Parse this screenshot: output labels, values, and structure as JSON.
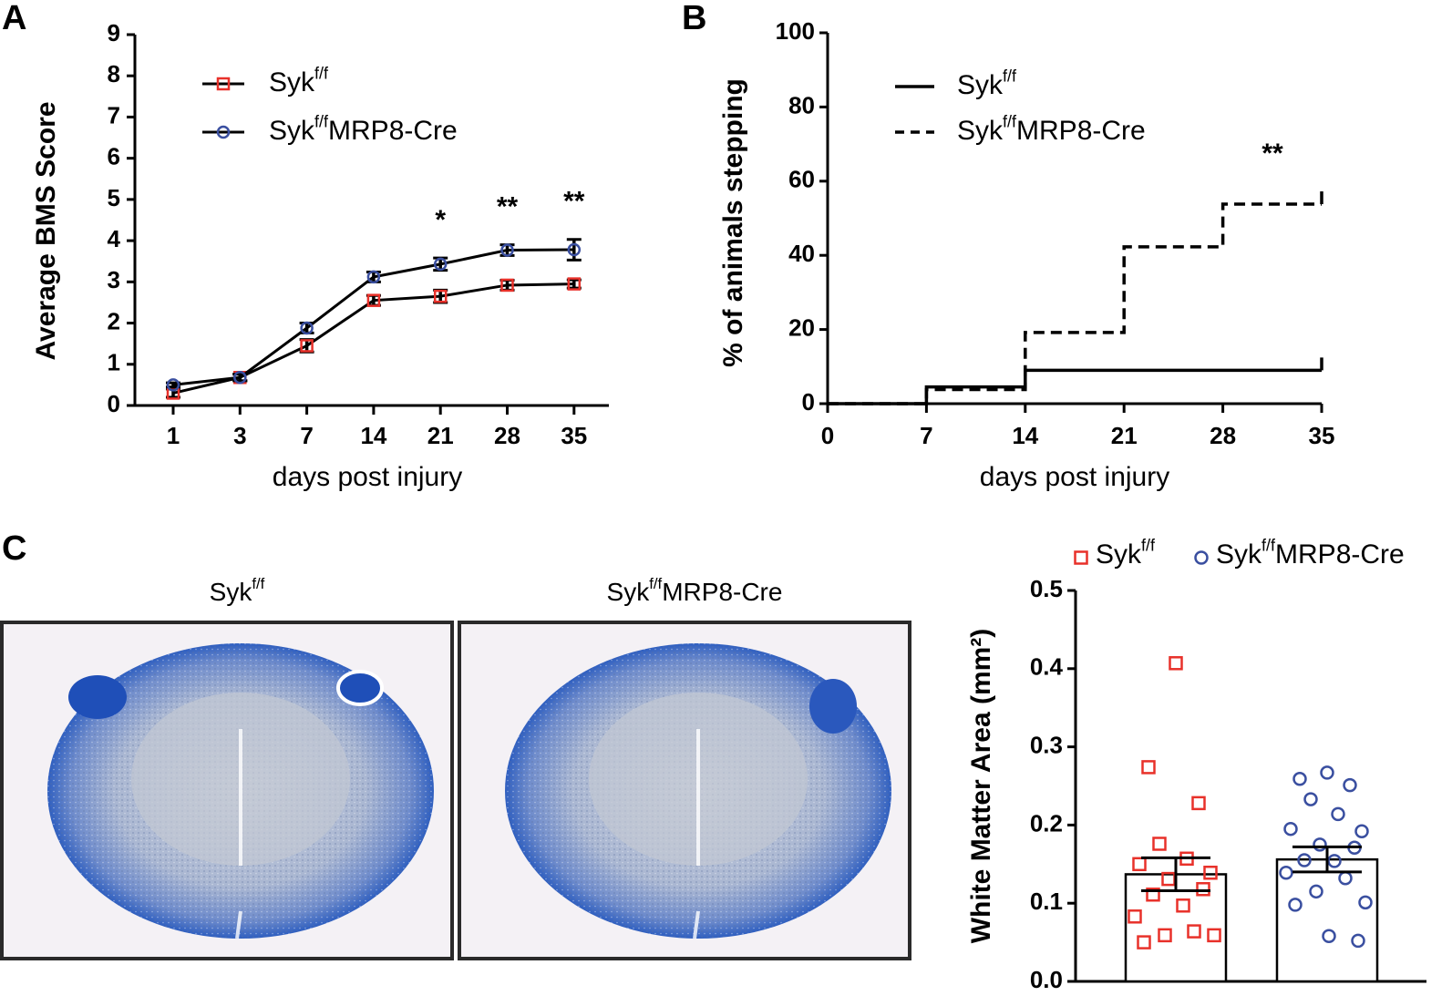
{
  "chart_data": [
    {
      "type": "line",
      "panel": "A",
      "categories": [
        1,
        3,
        7,
        14,
        21,
        28,
        35
      ],
      "xlabel": "days post injury",
      "ylabel": "Average BMS Score",
      "ylim": [
        0,
        9
      ],
      "yticks": [
        0,
        1,
        2,
        3,
        4,
        5,
        6,
        7,
        8,
        9
      ],
      "line_color": "#000000",
      "series": [
        {
          "name": "Syk",
          "superscript": "f/f",
          "color": "#e8312a",
          "marker": "square",
          "values": [
            0.3,
            0.68,
            1.45,
            2.55,
            2.65,
            2.92,
            2.95
          ],
          "errors": [
            0.1,
            0.08,
            0.15,
            0.12,
            0.15,
            0.12,
            0.1
          ]
        },
        {
          "name": "Syk",
          "superscript": "f/f",
          "suffix": "MRP8-Cre",
          "color": "#3a4fa0",
          "marker": "circle",
          "values": [
            0.5,
            0.68,
            1.88,
            3.12,
            3.43,
            3.77,
            3.78
          ],
          "errors": [
            0.05,
            0.08,
            0.12,
            0.12,
            0.15,
            0.13,
            0.25
          ]
        }
      ],
      "annotations": [
        null,
        null,
        null,
        null,
        "*",
        "**",
        "**"
      ]
    },
    {
      "type": "step",
      "panel": "B",
      "x": [
        0,
        7,
        14,
        21,
        28,
        35
      ],
      "xlim": [
        0,
        35
      ],
      "xticks": [
        0,
        7,
        14,
        21,
        28,
        35
      ],
      "ylim": [
        0,
        100
      ],
      "yticks": [
        0,
        20,
        40,
        60,
        80,
        100
      ],
      "xlabel": "days post injury",
      "ylabel": "% of animals stepping",
      "series": [
        {
          "name": "Syk",
          "superscript": "f/f",
          "color": "#000000",
          "dashed": false,
          "values": [
            0,
            4.5,
            9,
            9,
            9,
            9
          ]
        },
        {
          "name": "Syk",
          "superscript": "f/f",
          "suffix": "MRP8-Cre",
          "color": "#000000",
          "dashed": true,
          "values": [
            0,
            3.8,
            19.2,
            42.3,
            53.8,
            53.8
          ]
        }
      ],
      "annotation": "**"
    },
    {
      "type": "image",
      "panel": "C",
      "images": [
        {
          "name": "Syk",
          "superscript": "f/f"
        },
        {
          "name": "Syk",
          "superscript": "f/f",
          "suffix": "MRP8-Cre"
        }
      ]
    },
    {
      "type": "bar_scatter",
      "ylabel": "White Matter Area (mm²)",
      "ylim": [
        0,
        0.5
      ],
      "yticks": [
        {
          "value": 0,
          "label": "0.0"
        },
        0.1,
        0.2,
        0.3,
        0.4,
        0.5
      ],
      "series": [
        {
          "name": "Syk",
          "superscript": "f/f",
          "color": "#e8312a",
          "marker": "square",
          "mean": 0.137,
          "error": 0.021,
          "points": [
            0.407,
            0.274,
            0.228,
            0.176,
            0.157,
            0.15,
            0.139,
            0.131,
            0.118,
            0.111,
            0.097,
            0.083,
            0.064,
            0.059,
            0.059,
            0.05
          ]
        },
        {
          "name": "Syk",
          "superscript": "f/f",
          "suffix": "MRP8-Cre",
          "color": "#3a4fa0",
          "marker": "circle",
          "mean": 0.156,
          "error": 0.016,
          "points": [
            0.267,
            0.259,
            0.251,
            0.233,
            0.214,
            0.195,
            0.192,
            0.175,
            0.171,
            0.155,
            0.154,
            0.139,
            0.132,
            0.115,
            0.101,
            0.098,
            0.058,
            0.052
          ]
        }
      ]
    }
  ]
}
